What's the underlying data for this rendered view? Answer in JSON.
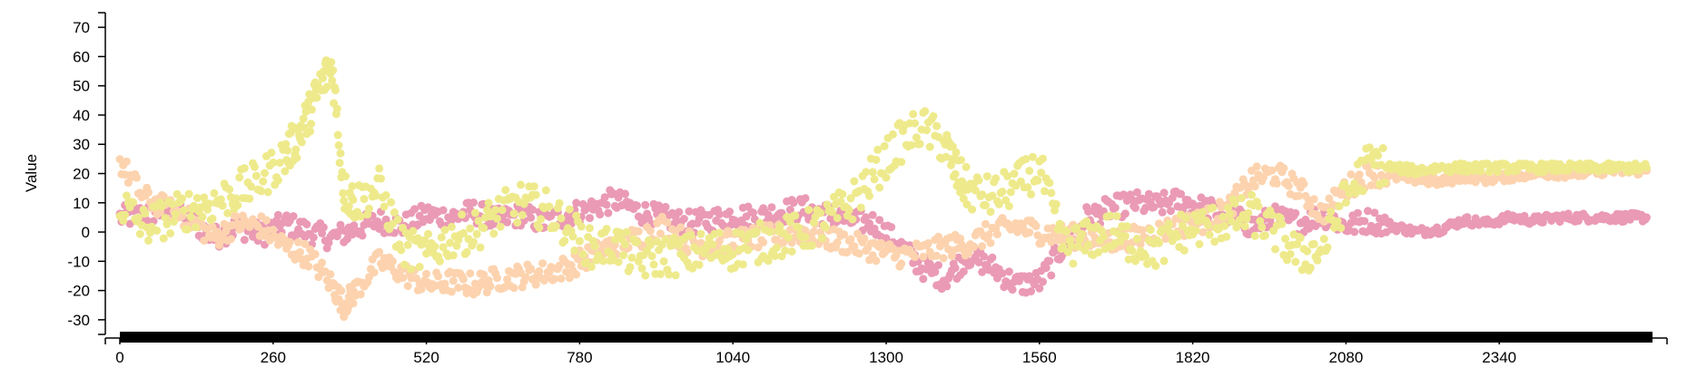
{
  "chart_data": {
    "type": "scatter",
    "title": "",
    "xlabel": "",
    "ylabel": "Value",
    "xlim": [
      0,
      2600
    ],
    "ylim": [
      -35,
      75
    ],
    "x_ticks": [
      0,
      260,
      520,
      780,
      1040,
      1300,
      1560,
      1820,
      2080,
      2340
    ],
    "y_ticks": [
      -30,
      -20,
      -10,
      0,
      10,
      20,
      30,
      40,
      50,
      60,
      70
    ],
    "grid": false,
    "legend": "none",
    "brush_bar": {
      "from": 0,
      "to": 2600
    },
    "series": [
      {
        "color": "#ea9ab4",
        "points": [
          [
            0,
            5
          ],
          [
            40,
            6
          ],
          [
            80,
            8
          ],
          [
            120,
            4
          ],
          [
            160,
            -2
          ],
          [
            200,
            2
          ],
          [
            240,
            -1
          ],
          [
            280,
            3
          ],
          [
            320,
            0
          ],
          [
            360,
            -2
          ],
          [
            400,
            1
          ],
          [
            440,
            4
          ],
          [
            480,
            2
          ],
          [
            520,
            6
          ],
          [
            560,
            5
          ],
          [
            600,
            7
          ],
          [
            640,
            4
          ],
          [
            680,
            6
          ],
          [
            720,
            3
          ],
          [
            760,
            6
          ],
          [
            800,
            8
          ],
          [
            840,
            11
          ],
          [
            880,
            7
          ],
          [
            920,
            5
          ],
          [
            960,
            3
          ],
          [
            1000,
            4
          ],
          [
            1040,
            6
          ],
          [
            1080,
            5
          ],
          [
            1120,
            7
          ],
          [
            1160,
            8
          ],
          [
            1200,
            6
          ],
          [
            1240,
            4
          ],
          [
            1280,
            3
          ],
          [
            1320,
            -4
          ],
          [
            1360,
            -12
          ],
          [
            1400,
            -16
          ],
          [
            1440,
            -8
          ],
          [
            1480,
            -12
          ],
          [
            1520,
            -18
          ],
          [
            1560,
            -17
          ],
          [
            1600,
            -5
          ],
          [
            1640,
            5
          ],
          [
            1680,
            8
          ],
          [
            1720,
            10
          ],
          [
            1760,
            9
          ],
          [
            1800,
            11
          ],
          [
            1840,
            8
          ],
          [
            1880,
            6
          ],
          [
            1920,
            2
          ],
          [
            1960,
            5
          ],
          [
            2000,
            3
          ],
          [
            2040,
            6
          ],
          [
            2080,
            2
          ],
          [
            2120,
            4
          ],
          [
            2160,
            2
          ],
          [
            2200,
            0
          ],
          [
            2240,
            1
          ],
          [
            2280,
            4
          ],
          [
            2320,
            3
          ],
          [
            2360,
            5
          ],
          [
            2400,
            4
          ],
          [
            2440,
            5
          ],
          [
            2480,
            5
          ],
          [
            2520,
            5
          ],
          [
            2560,
            5
          ],
          [
            2590,
            5
          ]
        ]
      },
      {
        "color": "#fcd3ae",
        "points": [
          [
            0,
            24
          ],
          [
            40,
            12
          ],
          [
            80,
            8
          ],
          [
            120,
            4
          ],
          [
            160,
            -2
          ],
          [
            200,
            3
          ],
          [
            240,
            2
          ],
          [
            280,
            -5
          ],
          [
            320,
            -8
          ],
          [
            360,
            -18
          ],
          [
            380,
            -25
          ],
          [
            400,
            -20
          ],
          [
            440,
            -10
          ],
          [
            480,
            -14
          ],
          [
            520,
            -18
          ],
          [
            560,
            -17
          ],
          [
            600,
            -18
          ],
          [
            640,
            -16
          ],
          [
            680,
            -15
          ],
          [
            720,
            -14
          ],
          [
            760,
            -12
          ],
          [
            800,
            -8
          ],
          [
            840,
            -4
          ],
          [
            880,
            -2
          ],
          [
            920,
            2
          ],
          [
            960,
            -3
          ],
          [
            1000,
            -5
          ],
          [
            1040,
            -3
          ],
          [
            1080,
            -2
          ],
          [
            1120,
            -1
          ],
          [
            1160,
            0
          ],
          [
            1200,
            -2
          ],
          [
            1240,
            -4
          ],
          [
            1280,
            -6
          ],
          [
            1320,
            -8
          ],
          [
            1360,
            -7
          ],
          [
            1400,
            -5
          ],
          [
            1440,
            -4
          ],
          [
            1480,
            0
          ],
          [
            1520,
            2
          ],
          [
            1560,
            0
          ],
          [
            1600,
            -1
          ],
          [
            1640,
            -2
          ],
          [
            1680,
            -3
          ],
          [
            1720,
            -2
          ],
          [
            1760,
            0
          ],
          [
            1800,
            2
          ],
          [
            1840,
            4
          ],
          [
            1880,
            8
          ],
          [
            1920,
            18
          ],
          [
            1960,
            20
          ],
          [
            2000,
            15
          ],
          [
            2040,
            6
          ],
          [
            2080,
            15
          ],
          [
            2120,
            20
          ],
          [
            2160,
            19
          ],
          [
            2200,
            18
          ],
          [
            2240,
            17
          ],
          [
            2280,
            19
          ],
          [
            2320,
            18
          ],
          [
            2360,
            19
          ],
          [
            2400,
            20
          ],
          [
            2440,
            20
          ],
          [
            2480,
            20
          ],
          [
            2520,
            21
          ],
          [
            2560,
            21
          ],
          [
            2590,
            21
          ]
        ]
      },
      {
        "color": "#eeea8c",
        "points": [
          [
            0,
            10
          ],
          [
            40,
            2
          ],
          [
            80,
            5
          ],
          [
            120,
            8
          ],
          [
            160,
            10
          ],
          [
            200,
            14
          ],
          [
            240,
            18
          ],
          [
            280,
            26
          ],
          [
            300,
            32
          ],
          [
            320,
            40
          ],
          [
            340,
            50
          ],
          [
            360,
            57
          ],
          [
            380,
            14
          ],
          [
            400,
            10
          ],
          [
            440,
            15
          ],
          [
            480,
            -5
          ],
          [
            520,
            -8
          ],
          [
            560,
            -2
          ],
          [
            600,
            0
          ],
          [
            640,
            6
          ],
          [
            680,
            10
          ],
          [
            720,
            8
          ],
          [
            760,
            2
          ],
          [
            800,
            -6
          ],
          [
            840,
            -4
          ],
          [
            880,
            -10
          ],
          [
            920,
            -8
          ],
          [
            960,
            -8
          ],
          [
            1000,
            -6
          ],
          [
            1040,
            -6
          ],
          [
            1080,
            -4
          ],
          [
            1120,
            -2
          ],
          [
            1160,
            0
          ],
          [
            1200,
            4
          ],
          [
            1240,
            10
          ],
          [
            1280,
            20
          ],
          [
            1320,
            30
          ],
          [
            1360,
            36
          ],
          [
            1400,
            30
          ],
          [
            1420,
            20
          ],
          [
            1440,
            14
          ],
          [
            1480,
            12
          ],
          [
            1520,
            16
          ],
          [
            1560,
            22
          ],
          [
            1600,
            -5
          ],
          [
            1640,
            -3
          ],
          [
            1680,
            0
          ],
          [
            1720,
            -4
          ],
          [
            1760,
            -6
          ],
          [
            1800,
            0
          ],
          [
            1840,
            2
          ],
          [
            1880,
            4
          ],
          [
            1920,
            6
          ],
          [
            1960,
            0
          ],
          [
            2000,
            -8
          ],
          [
            2040,
            -6
          ],
          [
            2080,
            12
          ],
          [
            2120,
            24
          ],
          [
            2160,
            22
          ],
          [
            2200,
            21
          ],
          [
            2240,
            22
          ],
          [
            2280,
            22
          ],
          [
            2320,
            22
          ],
          [
            2360,
            22
          ],
          [
            2400,
            22
          ],
          [
            2440,
            22
          ],
          [
            2480,
            22
          ],
          [
            2520,
            22
          ],
          [
            2560,
            22
          ],
          [
            2590,
            22
          ]
        ]
      }
    ]
  }
}
